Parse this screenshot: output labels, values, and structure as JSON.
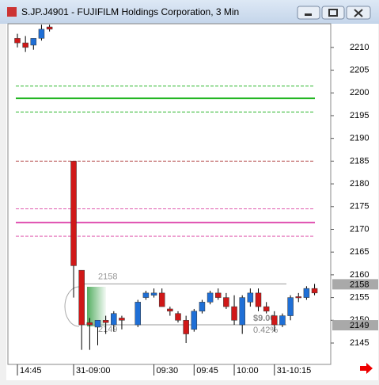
{
  "chart_data": {
    "type": "candlestick",
    "title": "S.JP.J4901 - FUJIFILM Holdings Corporation, 3 Min",
    "up_color": "#1f6fd6",
    "down_color": "#d01818",
    "open": [
      2212,
      2211,
      2210.5,
      2212,
      2214.5,
      null,
      null,
      2185,
      2161,
      2149.5,
      2148.5,
      2150,
      2149,
      2150.5,
      null,
      2149,
      2155,
      2155.5,
      2156,
      2152.5,
      2151.5,
      2150,
      2148,
      2152,
      2154,
      2156,
      2155,
      2153,
      2149,
      2154,
      2156,
      2153,
      2151,
      2149,
      2151,
      2155.2,
      2155,
      2157
    ],
    "high": [
      2213,
      2212.5,
      2212,
      2215,
      2215,
      null,
      null,
      2185,
      2161,
      2150.5,
      2150,
      2151,
      2152,
      2151,
      null,
      2154.5,
      2156.5,
      2157,
      2157,
      2153,
      2152,
      2151,
      2152.5,
      2154.5,
      2156.5,
      2157,
      2156,
      2155.5,
      2155.5,
      2157,
      2157,
      2154,
      2152,
      2151.5,
      2155.5,
      2156,
      2157.5,
      2158
    ],
    "low": [
      2210,
      2209,
      2209.5,
      2211.5,
      2213.5,
      null,
      null,
      2155,
      2143.5,
      2143.5,
      2144.5,
      2147,
      2147.5,
      2148,
      null,
      2148.5,
      2154.5,
      2155,
      2153,
      2151,
      2149.5,
      2145,
      2147.5,
      2151.5,
      2153.5,
      2154.5,
      2152.5,
      2149,
      2147,
      2153,
      2152,
      2151.5,
      2147.5,
      2148.5,
      2150,
      2154,
      2154.5,
      2155.5
    ],
    "close": [
      2211,
      2210,
      2212,
      2214,
      2214,
      null,
      null,
      2162,
      2149,
      2149,
      2150,
      2149.5,
      2151.5,
      2150,
      null,
      2154,
      2156,
      2156,
      2153,
      2152,
      2150,
      2147,
      2152,
      2154,
      2156,
      2155,
      2153,
      2150,
      2155,
      2156,
      2153,
      2152,
      2149,
      2151,
      2155,
      2155,
      2157,
      2156
    ],
    "levels": [
      {
        "value": 2201.5,
        "color": "#2db82d",
        "style": "dashed"
      },
      {
        "value": 2198.8,
        "color": "#1fb51f",
        "style": "solid"
      },
      {
        "value": 2195.8,
        "color": "#2db82d",
        "style": "dashed"
      },
      {
        "value": 2185,
        "color": "#b04040",
        "style": "dashed"
      },
      {
        "value": 2174.5,
        "color": "#e060b0",
        "style": "dashed"
      },
      {
        "value": 2171.5,
        "color": "#e050b0",
        "style": "solid"
      },
      {
        "value": 2168.5,
        "color": "#e060b0",
        "style": "dashed"
      }
    ],
    "measure": {
      "high": 2158,
      "low": 2149,
      "change": {
        "value": 9,
        "label": "$9.00"
      },
      "percent": {
        "value": 0.42,
        "label": "0.42%"
      }
    },
    "price_markers": [
      2158,
      2149
    ],
    "ylim": [
      2140.3,
      2215.2
    ],
    "yticks": [
      2145,
      2150,
      2155,
      2160,
      2165,
      2170,
      2175,
      2180,
      2185,
      2190,
      2195,
      2200,
      2205,
      2210
    ],
    "xticks": [
      {
        "value": 0,
        "label": "14:45"
      },
      {
        "value": 7,
        "label": "31-09:00"
      },
      {
        "value": 17,
        "label": "09:30"
      },
      {
        "value": 22,
        "label": "09:45"
      },
      {
        "value": 27,
        "label": "10:00"
      },
      {
        "value": 32,
        "label": "31-10:15"
      }
    ]
  }
}
